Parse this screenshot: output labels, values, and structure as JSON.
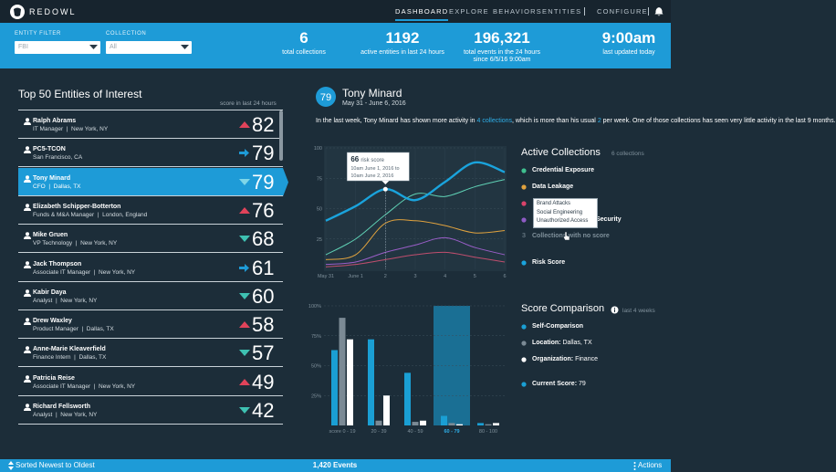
{
  "nav": {
    "brand": "REDOWL",
    "items": [
      "DASHBOARD",
      "EXPLORE",
      "BEHAVIORS",
      "ENTITIES",
      "CONFIGURE"
    ],
    "active": 0
  },
  "filters": [
    {
      "label": "ENTITY FILTER",
      "value": "FBI"
    },
    {
      "label": "COLLECTION",
      "value": "All"
    }
  ],
  "stats": [
    {
      "value": 6,
      "label": "total collections"
    },
    {
      "value": 1192,
      "label": "active entities in last 24 hours"
    },
    {
      "value": "196,321",
      "label": "total events in the 24 hours",
      "label2": "since 6/5/16 9:00am"
    },
    {
      "value": "9:00am",
      "label": "last updated today"
    }
  ],
  "entities": {
    "title": "Top 50 Entities of Interest",
    "subtitle": "score in last 24 hours",
    "selected": 2,
    "rows": [
      {
        "name": "Ralph Abrams",
        "role": "IT Manager",
        "location": "New York, NY",
        "trend": "up",
        "score": 82
      },
      {
        "name": "PC5-TCON",
        "location": "San Francisco, CA",
        "trend": "right",
        "score": 79
      },
      {
        "name": "Tony Minard",
        "role": "CFO",
        "location": "Dallas, TX",
        "trend": "down",
        "score": 79
      },
      {
        "name": "Elizabeth Schipper-Botterton",
        "role": "Funds & M&A Manager",
        "location": "London, England",
        "trend": "up",
        "score": 76
      },
      {
        "name": "Mike Gruen",
        "role": "VP Technology",
        "location": "New York, NY",
        "trend": "down",
        "score": 68
      },
      {
        "name": "Jack Thompson",
        "role": "Associate IT Manager",
        "location": "New York, NY",
        "trend": "right",
        "score": 61
      },
      {
        "name": "Kabir Daya",
        "role": "Analyst",
        "location": "New York, NY",
        "trend": "down",
        "score": 60
      },
      {
        "name": "Drew Waxley",
        "role": "Product Manager",
        "location": "Dallas, TX",
        "trend": "up",
        "score": 58
      },
      {
        "name": "Anne-Marie Kleaverfield",
        "role": "Finance Intern",
        "location": "Dallas, TX",
        "trend": "down",
        "score": 57
      },
      {
        "name": "Patricia Reise",
        "role": "Associate IT Manager",
        "location": "New York, NY",
        "trend": "up",
        "score": 49
      },
      {
        "name": "Richard Fellsworth",
        "role": "Analyst",
        "location": "New York, NY",
        "trend": "down",
        "score": 42
      }
    ]
  },
  "detail": {
    "score": 79,
    "name": "Tony Minard",
    "dates": "May 31 - June 6, 2016",
    "summary": [
      {
        "text": "In the last week, Tony Minard has shown more activity in "
      },
      {
        "text": "4 collections",
        "link": true
      },
      {
        "text": ", which is more than his usual "
      },
      {
        "text": "2",
        "link": true
      },
      {
        "text": " per week. One of those collections has seen very little activity in the last 9 months."
      }
    ],
    "line_chart": {
      "type": "line",
      "x": [
        "May 31",
        "June 1",
        "2",
        "3",
        "4",
        "5",
        "6"
      ],
      "ylim": [
        0,
        100
      ],
      "yticks": [
        25,
        50,
        75,
        100
      ],
      "series": [
        {
          "color": "#5fd0b4",
          "values": [
            12,
            25,
            45,
            62,
            60,
            68,
            74
          ]
        },
        {
          "color": "#e0a23e",
          "values": [
            8,
            12,
            38,
            40,
            36,
            30,
            32
          ]
        },
        {
          "color": "#c04e6e",
          "values": [
            2,
            4,
            8,
            12,
            14,
            10,
            6
          ]
        },
        {
          "color": "#9a5ec8",
          "values": [
            4,
            6,
            14,
            20,
            26,
            18,
            12
          ]
        },
        {
          "color": "#1aa3dc",
          "values": [
            40,
            52,
            66,
            57,
            72,
            88,
            80
          ]
        }
      ],
      "tooltip": {
        "value": 66,
        "label": "risk score",
        "from": "10am June 1, 2016 to",
        "to": "10am June 2, 2016"
      }
    },
    "collections": {
      "title": "Active Collections",
      "count": "6 collections",
      "items": [
        {
          "label": "Credential Exposure",
          "color": "#3fbf8f"
        },
        {
          "label": "Data Leakage",
          "color": "#e0a23e"
        },
        {
          "color": "#d9436b"
        },
        {
          "label": "Security",
          "color": "#8e5bc4"
        }
      ],
      "none": {
        "count": 3,
        "label": "Collections with no score"
      },
      "risk": {
        "label": "Risk Score",
        "color": "#1aa3dc"
      },
      "popup": [
        "Brand Attacks",
        "Social Engineering",
        "Unauthorized Access"
      ]
    },
    "bar_chart": {
      "type": "bar",
      "categories": [
        "score 0 - 19",
        "20 - 39",
        "40 - 59",
        "60 - 79",
        "80 - 100"
      ],
      "ylim": [
        0,
        100
      ],
      "yticks": [
        {
          "value": 25,
          "label": "25%"
        },
        {
          "value": 50,
          "label": "50%"
        },
        {
          "value": 75,
          "label": "75%"
        },
        {
          "value": 100,
          "label": "100%"
        }
      ],
      "highlight": 3,
      "series": [
        {
          "color": "#1a9fd4",
          "values": [
            63,
            72,
            44,
            8,
            2
          ]
        },
        {
          "color": "#7b8a95",
          "values": [
            90,
            4,
            3,
            2,
            1
          ]
        },
        {
          "color": "#ffffff",
          "values": [
            72,
            25,
            4,
            1,
            2
          ]
        }
      ]
    },
    "comparison": {
      "title": "Score Comparison",
      "period": "last 4 weeks",
      "items": [
        {
          "label": "Self-Comparison",
          "color": "#1a9fd4"
        },
        {
          "label": "Location:",
          "value": "Dallas, TX",
          "color": "#7b8a95"
        },
        {
          "label": "Organization:",
          "value": "Finance",
          "color": "#ffffff"
        },
        {
          "label": "Current Score",
          "value": 79,
          "color": "#1a9fd4"
        }
      ]
    }
  },
  "footer": {
    "sort": "Sorted Newest to Oldest",
    "events": "1,420 Events",
    "actions": "Actions"
  }
}
